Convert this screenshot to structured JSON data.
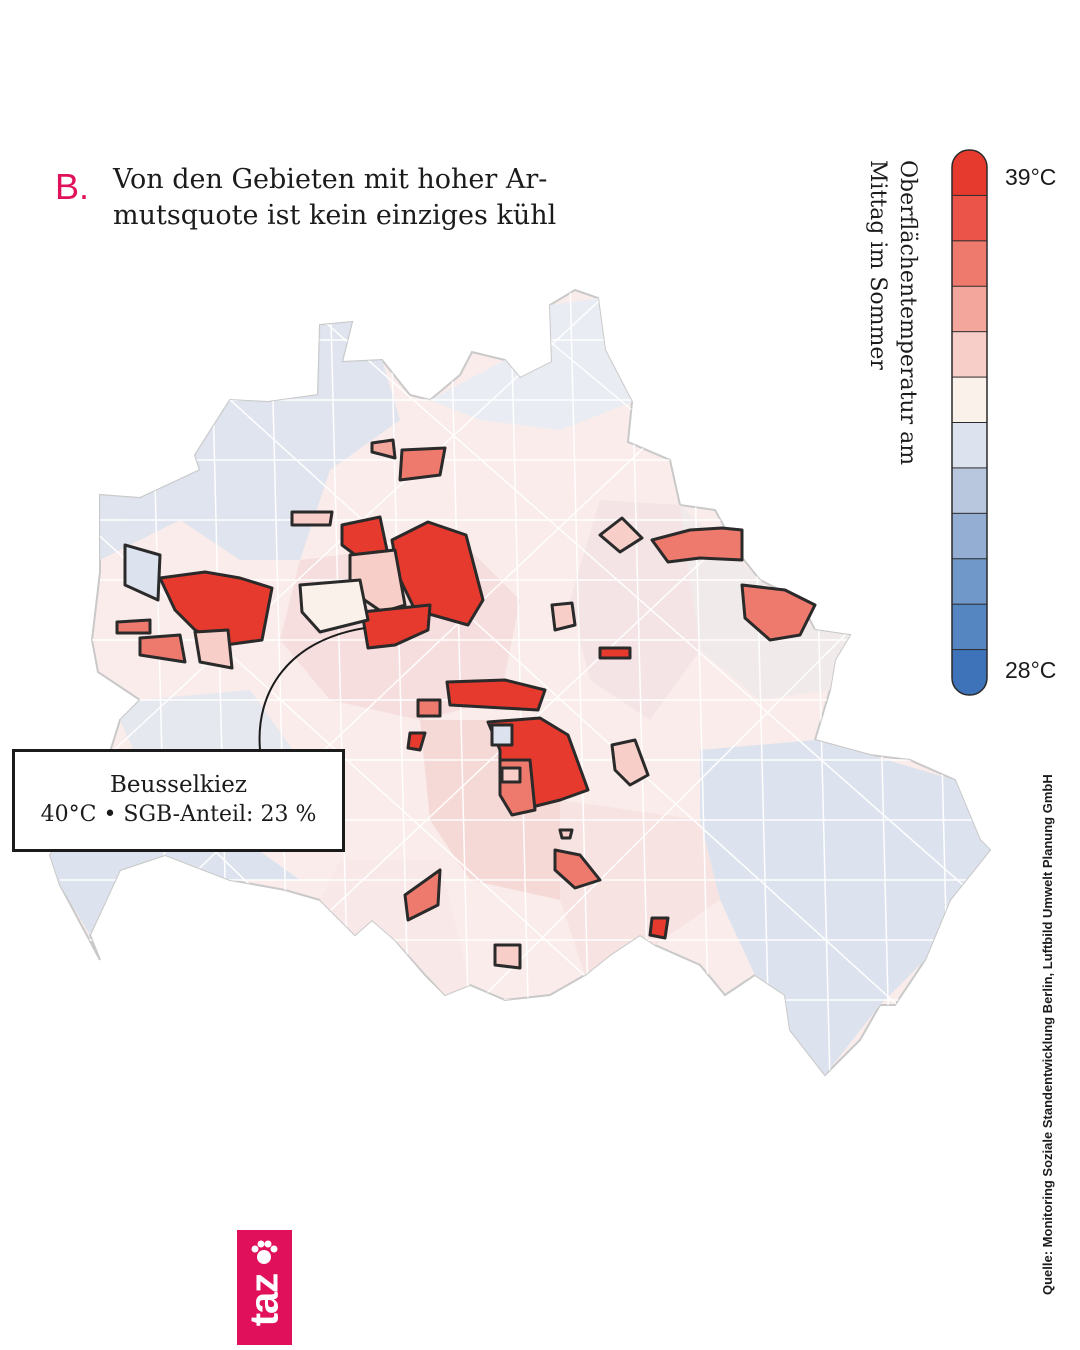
{
  "headline": {
    "letter": "B.",
    "text": "Von den Gebieten mit hoher Ar-mutsquote ist kein einziges kühl"
  },
  "legend": {
    "title": "Oberflächentemperatur am Mittag im Sommer",
    "max_label": "39°C",
    "min_label": "28°C",
    "steps": [
      "#e63a2e",
      "#eb5448",
      "#ee7a6e",
      "#f3a69c",
      "#f8cfc8",
      "#faf1ea",
      "#dde3ee",
      "#b8c7de",
      "#93aed2",
      "#7098c8",
      "#5586c2",
      "#3e73b9"
    ]
  },
  "callout": {
    "name": "Beusselkiez",
    "values": "40°C • SGB-Anteil: 23 %"
  },
  "source": "Quelle: Monitoring Soziale Standentwicklung Berlin, Luftbild Umwelt Planung GmbH",
  "logo": {
    "word": "taz"
  },
  "colors": {
    "accent": "#e0105a",
    "hot": "#e63a2e",
    "cool": "#dde3ee"
  }
}
